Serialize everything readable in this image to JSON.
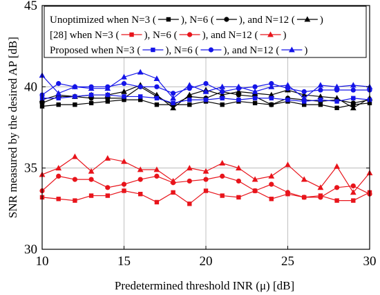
{
  "chart_data": {
    "type": "line",
    "xlabel": "Predetermined threshold INR (μ) [dB]",
    "ylabel": "SNR measured by the desired AP [dB]",
    "xlim": [
      10,
      30
    ],
    "ylim": [
      30,
      45
    ],
    "xticks": [
      10,
      15,
      20,
      25,
      30
    ],
    "yticks": [
      30,
      35,
      40,
      45
    ],
    "grid": true,
    "legend_position": "top",
    "legend": [
      {
        "prefix": "Unoptimized when N=3 (",
        "mid1": "), N=6 (",
        "mid2": "), and N=12 (",
        "suffix": ")",
        "color": "#000000"
      },
      {
        "prefix": "[28] when N=3 (",
        "mid1": "), N=6 (",
        "mid2": "), and N=12 (",
        "suffix": ")",
        "color": "#e8141b"
      },
      {
        "prefix": "Proposed when N=3 (",
        "mid1": "),  N=6 (",
        "mid2": "), and N=12 (",
        "suffix": ")",
        "color": "#1414e8"
      }
    ],
    "x": [
      10,
      11,
      12,
      13,
      14,
      15,
      16,
      17,
      18,
      19,
      20,
      21,
      22,
      23,
      24,
      25,
      26,
      27,
      28,
      29,
      30
    ],
    "series": [
      {
        "group": "Unoptimized",
        "n": 3,
        "marker": "square",
        "color": "#000000",
        "values": [
          38.8,
          38.9,
          38.9,
          39.0,
          39.1,
          39.2,
          39.2,
          38.9,
          38.9,
          38.9,
          39.1,
          38.9,
          39.1,
          39.0,
          38.9,
          39.1,
          38.9,
          38.9,
          38.7,
          38.9,
          39.0
        ]
      },
      {
        "group": "Unoptimized",
        "n": 6,
        "marker": "circle",
        "color": "#000000",
        "values": [
          39.0,
          39.4,
          39.4,
          39.3,
          39.3,
          39.3,
          40.0,
          39.4,
          38.9,
          39.4,
          39.3,
          39.7,
          39.5,
          39.4,
          38.9,
          39.3,
          39.2,
          39.1,
          39.2,
          39.0,
          39.2
        ]
      },
      {
        "group": "Unoptimized",
        "n": 12,
        "marker": "triangle",
        "color": "#000000",
        "values": [
          39.2,
          39.5,
          39.4,
          39.5,
          39.5,
          39.7,
          40.1,
          39.5,
          38.7,
          39.5,
          39.8,
          39.5,
          39.7,
          39.6,
          39.5,
          39.8,
          39.5,
          39.4,
          39.3,
          38.7,
          39.3
        ]
      },
      {
        "group": "[28]",
        "n": 3,
        "marker": "square",
        "color": "#e8141b",
        "values": [
          33.2,
          33.1,
          33.0,
          33.3,
          33.3,
          33.6,
          33.4,
          32.9,
          33.5,
          32.8,
          33.6,
          33.3,
          33.2,
          33.6,
          33.1,
          33.4,
          33.2,
          33.3,
          33.0,
          33.0,
          33.5
        ]
      },
      {
        "group": "[28]",
        "n": 6,
        "marker": "circle",
        "color": "#e8141b",
        "values": [
          33.6,
          34.5,
          34.3,
          34.3,
          33.8,
          34.0,
          34.3,
          34.5,
          34.1,
          34.2,
          34.3,
          34.5,
          34.2,
          33.6,
          34.0,
          33.5,
          33.2,
          33.2,
          33.8,
          33.9,
          33.4
        ]
      },
      {
        "group": "[28]",
        "n": 12,
        "marker": "triangle",
        "color": "#e8141b",
        "values": [
          34.6,
          35.0,
          35.7,
          34.8,
          35.6,
          35.4,
          34.9,
          34.9,
          34.2,
          35.0,
          34.8,
          35.3,
          35.0,
          34.3,
          34.5,
          35.2,
          34.3,
          33.8,
          35.1,
          33.5,
          34.7
        ]
      },
      {
        "group": "Proposed",
        "n": 3,
        "marker": "square",
        "color": "#1414e8",
        "values": [
          39.3,
          39.3,
          39.4,
          39.5,
          39.5,
          39.4,
          39.4,
          39.3,
          39.0,
          39.2,
          39.2,
          39.3,
          39.2,
          39.3,
          39.3,
          39.2,
          39.1,
          39.2,
          39.1,
          39.3,
          39.2
        ]
      },
      {
        "group": "Proposed",
        "n": 6,
        "marker": "circle",
        "color": "#1414e8",
        "values": [
          39.5,
          40.2,
          40.0,
          40.0,
          40.0,
          40.2,
          40.0,
          40.0,
          39.6,
          39.9,
          40.2,
          39.7,
          39.9,
          40.0,
          40.2,
          39.9,
          39.7,
          39.8,
          39.8,
          39.8,
          39.8
        ]
      },
      {
        "group": "Proposed",
        "n": 12,
        "marker": "triangle",
        "color": "#1414e8",
        "values": [
          40.7,
          39.6,
          40.0,
          39.9,
          39.9,
          40.6,
          40.9,
          40.5,
          39.3,
          40.1,
          39.7,
          40.0,
          40.0,
          39.7,
          40.0,
          40.1,
          39.3,
          40.1,
          40.0,
          40.1,
          40.0
        ]
      }
    ]
  }
}
